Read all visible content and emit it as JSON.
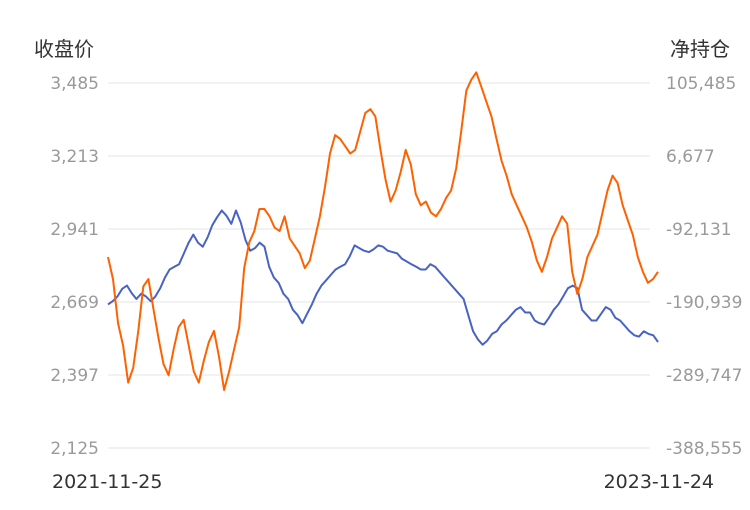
{
  "chart_data": {
    "type": "line",
    "left_axis_title": "收盘价",
    "right_axis_title": "净持仓",
    "x_start_label": "2021-11-25",
    "x_end_label": "2023-11-24",
    "left_ticks": [
      "3,485",
      "3,213",
      "2,941",
      "2,669",
      "2,397",
      "2,125"
    ],
    "right_ticks": [
      "105,485",
      "6,677",
      "-92,131",
      "-190,939",
      "-289,747",
      "-388,555"
    ],
    "y_left_range": [
      2125,
      3485
    ],
    "y_right_range": [
      -388555,
      105485
    ],
    "grid": "horizontal",
    "series": [
      {
        "axis": "left",
        "color": "#4863c4",
        "values": [
          2660,
          2672,
          2690,
          2718,
          2730,
          2702,
          2680,
          2700,
          2690,
          2672,
          2690,
          2720,
          2760,
          2790,
          2800,
          2810,
          2850,
          2890,
          2920,
          2890,
          2875,
          2910,
          2955,
          2985,
          3010,
          2990,
          2960,
          3010,
          2965,
          2900,
          2860,
          2870,
          2890,
          2875,
          2800,
          2760,
          2740,
          2700,
          2680,
          2640,
          2620,
          2590,
          2625,
          2660,
          2700,
          2730,
          2750,
          2770,
          2790,
          2800,
          2810,
          2840,
          2880,
          2870,
          2860,
          2855,
          2865,
          2880,
          2875,
          2860,
          2855,
          2850,
          2830,
          2820,
          2810,
          2800,
          2790,
          2790,
          2810,
          2800,
          2780,
          2760,
          2740,
          2720,
          2700,
          2680,
          2620,
          2560,
          2530,
          2510,
          2525,
          2550,
          2560,
          2585,
          2600,
          2620,
          2640,
          2650,
          2630,
          2630,
          2600,
          2590,
          2585,
          2610,
          2640,
          2660,
          2690,
          2720,
          2730,
          2720,
          2640,
          2620,
          2600,
          2600,
          2625,
          2650,
          2640,
          2610,
          2600,
          2580,
          2560,
          2545,
          2540,
          2560,
          2550,
          2545,
          2520
        ]
      },
      {
        "axis": "right",
        "color": "#ff6100",
        "values": [
          -130000,
          -160000,
          -220000,
          -250000,
          -300000,
          -280000,
          -230000,
          -170000,
          -160000,
          -200000,
          -240000,
          -275000,
          -290000,
          -255000,
          -225000,
          -215000,
          -250000,
          -285000,
          -300000,
          -270000,
          -245000,
          -230000,
          -265000,
          -310000,
          -285000,
          -255000,
          -225000,
          -145000,
          -110000,
          -95000,
          -65000,
          -65000,
          -75000,
          -90000,
          -95000,
          -75000,
          -105000,
          -115000,
          -125000,
          -145000,
          -135000,
          -105000,
          -75000,
          -35000,
          10000,
          35000,
          30000,
          20000,
          10000,
          15000,
          40000,
          65000,
          70000,
          60000,
          15000,
          -25000,
          -55000,
          -40000,
          -15000,
          15000,
          -5000,
          -45000,
          -60000,
          -55000,
          -70000,
          -75000,
          -65000,
          -50000,
          -40000,
          -10000,
          40000,
          95000,
          110000,
          120000,
          100000,
          80000,
          60000,
          30000,
          0,
          -20000,
          -45000,
          -60000,
          -75000,
          -90000,
          -110000,
          -135000,
          -150000,
          -130000,
          -105000,
          -90000,
          -75000,
          -85000,
          -150000,
          -180000,
          -160000,
          -130000,
          -115000,
          -100000,
          -70000,
          -40000,
          -20000,
          -30000,
          -60000,
          -80000,
          -100000,
          -130000,
          -150000,
          -165000,
          -160000,
          -150000
        ]
      }
    ]
  }
}
